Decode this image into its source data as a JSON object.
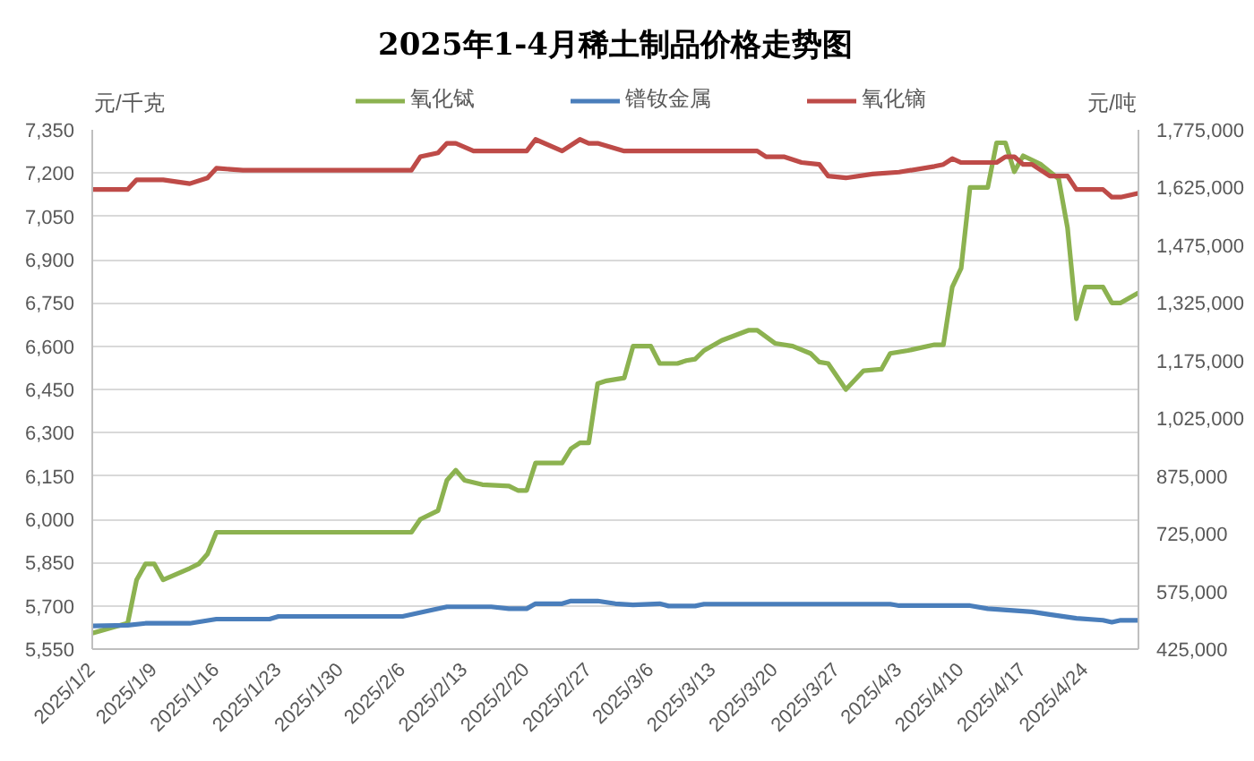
{
  "chart_data": {
    "type": "line",
    "title": "2025年1-4月稀土制品价格走势图",
    "ylabel": "元/千克",
    "y2label": "元/吨",
    "xlim": [
      "2025-01-02",
      "2025-04-30"
    ],
    "xticks": [
      {
        "value": "2025-01-02",
        "label": "2025/1/2"
      },
      {
        "value": "2025-01-09",
        "label": "2025/1/9"
      },
      {
        "value": "2025-01-16",
        "label": "2025/1/16"
      },
      {
        "value": "2025-01-23",
        "label": "2025/1/23"
      },
      {
        "value": "2025-01-30",
        "label": "2025/1/30"
      },
      {
        "value": "2025-02-06",
        "label": "2025/2/6"
      },
      {
        "value": "2025-02-13",
        "label": "2025/2/13"
      },
      {
        "value": "2025-02-20",
        "label": "2025/2/20"
      },
      {
        "value": "2025-02-27",
        "label": "2025/2/27"
      },
      {
        "value": "2025-03-06",
        "label": "2025/3/6"
      },
      {
        "value": "2025-03-13",
        "label": "2025/3/13"
      },
      {
        "value": "2025-03-20",
        "label": "2025/3/20"
      },
      {
        "value": "2025-03-27",
        "label": "2025/3/27"
      },
      {
        "value": "2025-04-03",
        "label": "2025/4/3"
      },
      {
        "value": "2025-04-10",
        "label": "2025/4/10"
      },
      {
        "value": "2025-04-17",
        "label": "2025/4/17"
      },
      {
        "value": "2025-04-24",
        "label": "2025/4/24"
      }
    ],
    "ylim": [
      5550,
      7350
    ],
    "yticks": [
      {
        "value": 5550,
        "label": "5,550"
      },
      {
        "value": 5700,
        "label": "5,700"
      },
      {
        "value": 5850,
        "label": "5,850"
      },
      {
        "value": 6000,
        "label": "6,000"
      },
      {
        "value": 6150,
        "label": "6,150"
      },
      {
        "value": 6300,
        "label": "6,300"
      },
      {
        "value": 6450,
        "label": "6,450"
      },
      {
        "value": 6600,
        "label": "6,600"
      },
      {
        "value": 6750,
        "label": "6,750"
      },
      {
        "value": 6900,
        "label": "6,900"
      },
      {
        "value": 7050,
        "label": "7,050"
      },
      {
        "value": 7200,
        "label": "7,200"
      },
      {
        "value": 7350,
        "label": "7,350"
      }
    ],
    "y2lim": [
      425000,
      1775000
    ],
    "y2ticks": [
      {
        "value": 425000,
        "label": "425,000"
      },
      {
        "value": 575000,
        "label": "575,000"
      },
      {
        "value": 725000,
        "label": "725,000"
      },
      {
        "value": 875000,
        "label": "875,000"
      },
      {
        "value": 1025000,
        "label": "1,025,000"
      },
      {
        "value": 1175000,
        "label": "1,175,000"
      },
      {
        "value": 1325000,
        "label": "1,325,000"
      },
      {
        "value": 1475000,
        "label": "1,475,000"
      },
      {
        "value": 1625000,
        "label": "1,625,000"
      },
      {
        "value": 1775000,
        "label": "1,775,000"
      }
    ],
    "grid": "y",
    "legend": "top",
    "line_style": "solid",
    "series": [
      {
        "name": "氧化铽",
        "color": "#8cb250",
        "x": [
          "2025-01-02",
          "2025-01-06",
          "2025-01-07",
          "2025-01-08",
          "2025-01-09",
          "2025-01-10",
          "2025-01-13",
          "2025-01-14",
          "2025-01-15",
          "2025-01-16",
          "2025-02-07",
          "2025-02-08",
          "2025-02-10",
          "2025-02-11",
          "2025-02-12",
          "2025-02-13",
          "2025-02-15",
          "2025-02-18",
          "2025-02-19",
          "2025-02-20",
          "2025-02-21",
          "2025-02-24",
          "2025-02-25",
          "2025-02-26",
          "2025-02-27",
          "2025-02-28",
          "2025-03-01",
          "2025-03-03",
          "2025-03-04",
          "2025-03-06",
          "2025-03-07",
          "2025-03-09",
          "2025-03-10",
          "2025-03-11",
          "2025-03-12",
          "2025-03-14",
          "2025-03-17",
          "2025-03-18",
          "2025-03-20",
          "2025-03-22",
          "2025-03-24",
          "2025-03-25",
          "2025-03-26",
          "2025-03-28",
          "2025-03-30",
          "2025-04-01",
          "2025-04-02",
          "2025-04-04",
          "2025-04-07",
          "2025-04-08",
          "2025-04-09",
          "2025-04-10",
          "2025-04-11",
          "2025-04-13",
          "2025-04-14",
          "2025-04-15",
          "2025-04-16",
          "2025-04-17",
          "2025-04-19",
          "2025-04-21",
          "2025-04-22",
          "2025-04-23",
          "2025-04-24",
          "2025-04-26",
          "2025-04-27",
          "2025-04-28",
          "2025-04-30"
        ],
        "values": [
          5605,
          5640,
          5790,
          5845,
          5845,
          5790,
          5830,
          5845,
          5880,
          5955,
          5955,
          6000,
          6030,
          6135,
          6170,
          6135,
          6120,
          6115,
          6100,
          6100,
          6195,
          6195,
          6245,
          6265,
          6265,
          6470,
          6480,
          6490,
          6600,
          6600,
          6540,
          6540,
          6550,
          6555,
          6585,
          6620,
          6655,
          6655,
          6610,
          6600,
          6575,
          6545,
          6540,
          6450,
          6515,
          6520,
          6575,
          6585,
          6605,
          6605,
          6805,
          6870,
          7150,
          7150,
          7305,
          7305,
          7205,
          7260,
          7230,
          7180,
          7010,
          6695,
          6805,
          6805,
          6750,
          6750,
          6785
        ]
      },
      {
        "name": "镨钕金属",
        "color": "#4a7ebb",
        "axis": "y2",
        "x": [
          "2025-01-02",
          "2025-01-06",
          "2025-01-08",
          "2025-01-13",
          "2025-01-16",
          "2025-01-22",
          "2025-01-23",
          "2025-02-06",
          "2025-02-09",
          "2025-02-11",
          "2025-02-16",
          "2025-02-18",
          "2025-02-20",
          "2025-02-21",
          "2025-02-24",
          "2025-02-25",
          "2025-02-28",
          "2025-03-02",
          "2025-03-04",
          "2025-03-07",
          "2025-03-08",
          "2025-03-11",
          "2025-03-12",
          "2025-04-02",
          "2025-04-03",
          "2025-04-11",
          "2025-04-13",
          "2025-04-18",
          "2025-04-20",
          "2025-04-23",
          "2025-04-26",
          "2025-04-27",
          "2025-04-28",
          "2025-04-30"
        ],
        "values": [
          485000,
          487000,
          492000,
          492000,
          503000,
          503000,
          510000,
          510000,
          525000,
          535000,
          535000,
          530000,
          530000,
          543000,
          543000,
          550000,
          550000,
          543000,
          540000,
          543000,
          537000,
          537000,
          542000,
          542000,
          538000,
          538000,
          530000,
          522000,
          515000,
          505000,
          500000,
          495000,
          500000,
          500000
        ]
      },
      {
        "name": "氧化镝",
        "color": "#be4b48",
        "axis": "y2",
        "x": [
          "2025-01-02",
          "2025-01-06",
          "2025-01-07",
          "2025-01-10",
          "2025-01-13",
          "2025-01-15",
          "2025-01-16",
          "2025-01-19",
          "2025-02-07",
          "2025-02-08",
          "2025-02-10",
          "2025-02-11",
          "2025-02-12",
          "2025-02-14",
          "2025-02-20",
          "2025-02-21",
          "2025-02-24",
          "2025-02-26",
          "2025-02-27",
          "2025-02-28",
          "2025-03-03",
          "2025-03-18",
          "2025-03-19",
          "2025-03-21",
          "2025-03-23",
          "2025-03-25",
          "2025-03-26",
          "2025-03-28",
          "2025-03-31",
          "2025-04-03",
          "2025-04-07",
          "2025-04-08",
          "2025-04-09",
          "2025-04-10",
          "2025-04-14",
          "2025-04-15",
          "2025-04-16",
          "2025-04-17",
          "2025-04-18",
          "2025-04-20",
          "2025-04-22",
          "2025-04-23",
          "2025-04-26",
          "2025-04-27",
          "2025-04-28",
          "2025-04-30"
        ],
        "values": [
          1620000,
          1620000,
          1645000,
          1645000,
          1635000,
          1650000,
          1675000,
          1670000,
          1670000,
          1705000,
          1715000,
          1740000,
          1740000,
          1720000,
          1720000,
          1750000,
          1720000,
          1750000,
          1740000,
          1740000,
          1720000,
          1720000,
          1705000,
          1705000,
          1690000,
          1685000,
          1655000,
          1650000,
          1660000,
          1665000,
          1680000,
          1685000,
          1700000,
          1690000,
          1690000,
          1705000,
          1705000,
          1685000,
          1685000,
          1655000,
          1655000,
          1620000,
          1620000,
          1600000,
          1600000,
          1610000
        ]
      }
    ]
  }
}
